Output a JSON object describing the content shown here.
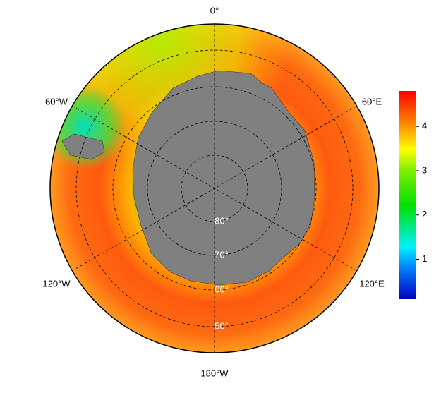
{
  "map": {
    "longitude_labels": [
      "0°",
      "60°E",
      "120°E",
      "180°W",
      "120°W",
      "60°W"
    ],
    "latitude_labels": [
      "80°",
      "70°",
      "60°",
      "50°"
    ]
  },
  "colorbar": {
    "range": [
      0.1,
      4.8
    ],
    "ticks": [
      1,
      2,
      3,
      4
    ]
  }
}
